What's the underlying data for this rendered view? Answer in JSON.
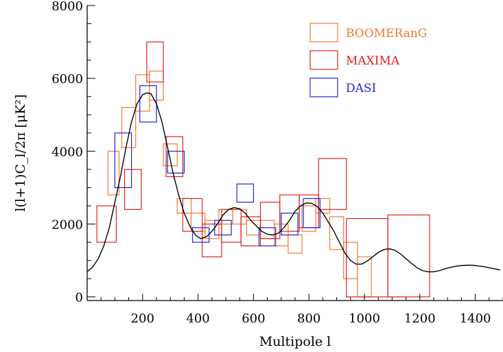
{
  "chart_data": {
    "type": "scatter",
    "title": "",
    "xlabel": "Multipole l",
    "ylabel": "l(l+1)C_l/2π [μK²]",
    "xlim": [
      0,
      1500
    ],
    "ylim": [
      -100,
      8000
    ],
    "x_ticks": [
      200,
      400,
      600,
      800,
      1000,
      1200,
      1400
    ],
    "y_ticks": [
      0,
      2000,
      4000,
      6000,
      8000
    ],
    "grid": false,
    "legend_position": "top-right",
    "series": [
      {
        "name": "BOOMERanG",
        "color": "#f07830",
        "boxes": [
          {
            "x0": 75,
            "x1": 115,
            "y0": 2800,
            "y1": 4000
          },
          {
            "x0": 125,
            "x1": 175,
            "y0": 4100,
            "y1": 5200
          },
          {
            "x0": 175,
            "x1": 225,
            "y0": 5100,
            "y1": 6100
          },
          {
            "x0": 225,
            "x1": 275,
            "y0": 5400,
            "y1": 6200
          },
          {
            "x0": 275,
            "x1": 325,
            "y0": 3600,
            "y1": 4200
          },
          {
            "x0": 325,
            "x1": 375,
            "y0": 2300,
            "y1": 2700
          },
          {
            "x0": 375,
            "x1": 425,
            "y0": 1800,
            "y1": 2300
          },
          {
            "x0": 425,
            "x1": 475,
            "y0": 1600,
            "y1": 2100
          },
          {
            "x0": 475,
            "x1": 525,
            "y0": 2000,
            "y1": 2400
          },
          {
            "x0": 525,
            "x1": 575,
            "y0": 2000,
            "y1": 2400
          },
          {
            "x0": 575,
            "x1": 625,
            "y0": 1700,
            "y1": 2100
          },
          {
            "x0": 625,
            "x1": 675,
            "y0": 1600,
            "y1": 2100
          },
          {
            "x0": 675,
            "x1": 725,
            "y0": 1400,
            "y1": 2000
          },
          {
            "x0": 725,
            "x1": 775,
            "y0": 1200,
            "y1": 1700
          },
          {
            "x0": 775,
            "x1": 825,
            "y0": 1800,
            "y1": 2500
          },
          {
            "x0": 825,
            "x1": 875,
            "y0": 2300,
            "y1": 2700
          },
          {
            "x0": 875,
            "x1": 925,
            "y0": 1300,
            "y1": 2200
          },
          {
            "x0": 925,
            "x1": 975,
            "y0": 500,
            "y1": 1500
          },
          {
            "x0": 975,
            "x1": 1025,
            "y0": 0,
            "y1": 1100
          }
        ]
      },
      {
        "name": "MAXIMA",
        "color": "#e02020",
        "boxes": [
          {
            "x0": 35,
            "x1": 105,
            "y0": 1500,
            "y1": 2500
          },
          {
            "x0": 135,
            "x1": 195,
            "y0": 2400,
            "y1": 3500
          },
          {
            "x0": 215,
            "x1": 275,
            "y0": 5900,
            "y1": 7000
          },
          {
            "x0": 285,
            "x1": 345,
            "y0": 3300,
            "y1": 4400
          },
          {
            "x0": 345,
            "x1": 415,
            "y0": 1800,
            "y1": 2700
          },
          {
            "x0": 415,
            "x1": 485,
            "y0": 1100,
            "y1": 2000
          },
          {
            "x0": 485,
            "x1": 555,
            "y0": 1500,
            "y1": 2400
          },
          {
            "x0": 555,
            "x1": 625,
            "y0": 1400,
            "y1": 2200
          },
          {
            "x0": 625,
            "x1": 695,
            "y0": 1600,
            "y1": 2600
          },
          {
            "x0": 695,
            "x1": 765,
            "y0": 1800,
            "y1": 2800
          },
          {
            "x0": 765,
            "x1": 835,
            "y0": 1900,
            "y1": 2800
          },
          {
            "x0": 835,
            "x1": 935,
            "y0": 2400,
            "y1": 3800
          },
          {
            "x0": 935,
            "x1": 1085,
            "y0": 0,
            "y1": 2150
          },
          {
            "x0": 1085,
            "x1": 1235,
            "y0": 0,
            "y1": 2250
          }
        ]
      },
      {
        "name": "DASI",
        "color": "#2020e0",
        "boxes": [
          {
            "x0": 100,
            "x1": 160,
            "y0": 3000,
            "y1": 4500
          },
          {
            "x0": 190,
            "x1": 250,
            "y0": 4800,
            "y1": 5800
          },
          {
            "x0": 290,
            "x1": 350,
            "y0": 3400,
            "y1": 4000
          },
          {
            "x0": 380,
            "x1": 440,
            "y0": 1500,
            "y1": 1900
          },
          {
            "x0": 460,
            "x1": 520,
            "y0": 1700,
            "y1": 2100
          },
          {
            "x0": 540,
            "x1": 600,
            "y0": 2600,
            "y1": 3100
          },
          {
            "x0": 620,
            "x1": 680,
            "y0": 1400,
            "y1": 1900
          },
          {
            "x0": 700,
            "x1": 760,
            "y0": 1700,
            "y1": 2300
          },
          {
            "x0": 780,
            "x1": 840,
            "y0": 1900,
            "y1": 2700
          }
        ]
      }
    ],
    "model_curve": {
      "name": "",
      "color": "#000000",
      "x": [
        2,
        20,
        40,
        60,
        80,
        100,
        120,
        140,
        160,
        180,
        200,
        215,
        230,
        250,
        270,
        290,
        310,
        330,
        350,
        370,
        390,
        410,
        430,
        450,
        470,
        490,
        510,
        530,
        550,
        570,
        590,
        610,
        630,
        650,
        670,
        690,
        710,
        730,
        750,
        770,
        790,
        810,
        830,
        850,
        870,
        890,
        910,
        930,
        950,
        970,
        990,
        1010,
        1030,
        1050,
        1070,
        1090,
        1110,
        1130,
        1150,
        1170,
        1190,
        1210,
        1230,
        1250,
        1270,
        1290,
        1310,
        1330,
        1350,
        1370,
        1390,
        1410,
        1430,
        1450,
        1470,
        1490
      ],
      "y": [
        700,
        820,
        1050,
        1400,
        1900,
        2600,
        3300,
        4100,
        4800,
        5300,
        5550,
        5600,
        5580,
        5300,
        4800,
        4100,
        3400,
        2800,
        2300,
        1950,
        1700,
        1600,
        1650,
        1800,
        2000,
        2250,
        2400,
        2450,
        2420,
        2300,
        2100,
        1950,
        1800,
        1720,
        1700,
        1750,
        1900,
        2100,
        2350,
        2500,
        2580,
        2570,
        2480,
        2300,
        2050,
        1800,
        1500,
        1200,
        1000,
        900,
        900,
        980,
        1100,
        1220,
        1300,
        1320,
        1280,
        1180,
        1050,
        920,
        800,
        720,
        690,
        690,
        720,
        770,
        810,
        840,
        860,
        870,
        870,
        850,
        830,
        800,
        770,
        740
      ]
    }
  }
}
